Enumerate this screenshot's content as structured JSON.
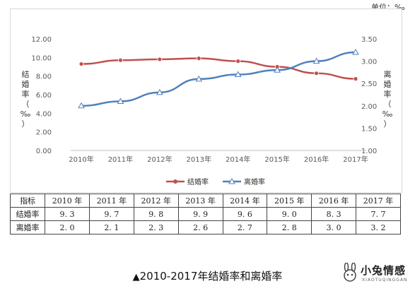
{
  "unit_label": "单位：‰",
  "caption": {
    "mark": "▲",
    "text": "2010-2017年结婚率和离婚率"
  },
  "watermark": {
    "text": "小兔情感",
    "sub": "XIAOTUQINGGAN"
  },
  "colors": {
    "marriage": "#c0504d",
    "divorce": "#4f81bd",
    "axis_text": "#595959",
    "grid": "#e6e6e6"
  },
  "chart_data": {
    "type": "line",
    "categories": [
      "2010年",
      "2011年",
      "2012年",
      "2013年",
      "2014年",
      "2015年",
      "2016年",
      "2017年"
    ],
    "series": [
      {
        "name": "结婚率",
        "axis": "left",
        "values": [
          9.3,
          9.7,
          9.8,
          9.9,
          9.6,
          9.0,
          8.3,
          7.7
        ]
      },
      {
        "name": "离婚率",
        "axis": "right",
        "values": [
          2.0,
          2.1,
          2.3,
          2.6,
          2.7,
          2.8,
          3.0,
          3.2
        ]
      }
    ],
    "left_axis": {
      "label": "结婚率（‰）",
      "ylim": [
        0,
        12
      ],
      "ticks": [
        "0.00",
        "2.00",
        "4.00",
        "6.00",
        "8.00",
        "10.00",
        "12.00"
      ]
    },
    "right_axis": {
      "label": "离婚率（‰）",
      "ylim": [
        1,
        3.5
      ],
      "ticks": [
        "1.00",
        "1.50",
        "2.00",
        "2.50",
        "3.00",
        "3.50"
      ]
    },
    "legend": {
      "placement": "bottom",
      "entries": [
        "结婚率",
        "离婚率"
      ]
    },
    "grid": false
  },
  "table": {
    "header": [
      "指标",
      "2010 年",
      "2011 年",
      "2012 年",
      "2013 年",
      "2014 年",
      "2015 年",
      "2016 年",
      "2017 年"
    ],
    "rows": [
      [
        "结婚率",
        "9. 3",
        "9. 7",
        "9. 8",
        "9. 9",
        "9. 6",
        "9. 0",
        "8. 3",
        "7. 7"
      ],
      [
        "离婚率",
        "2. 0",
        "2. 1",
        "2. 3",
        "2. 6",
        "2. 7",
        "2. 8",
        "3. 0",
        "3. 2"
      ]
    ]
  }
}
